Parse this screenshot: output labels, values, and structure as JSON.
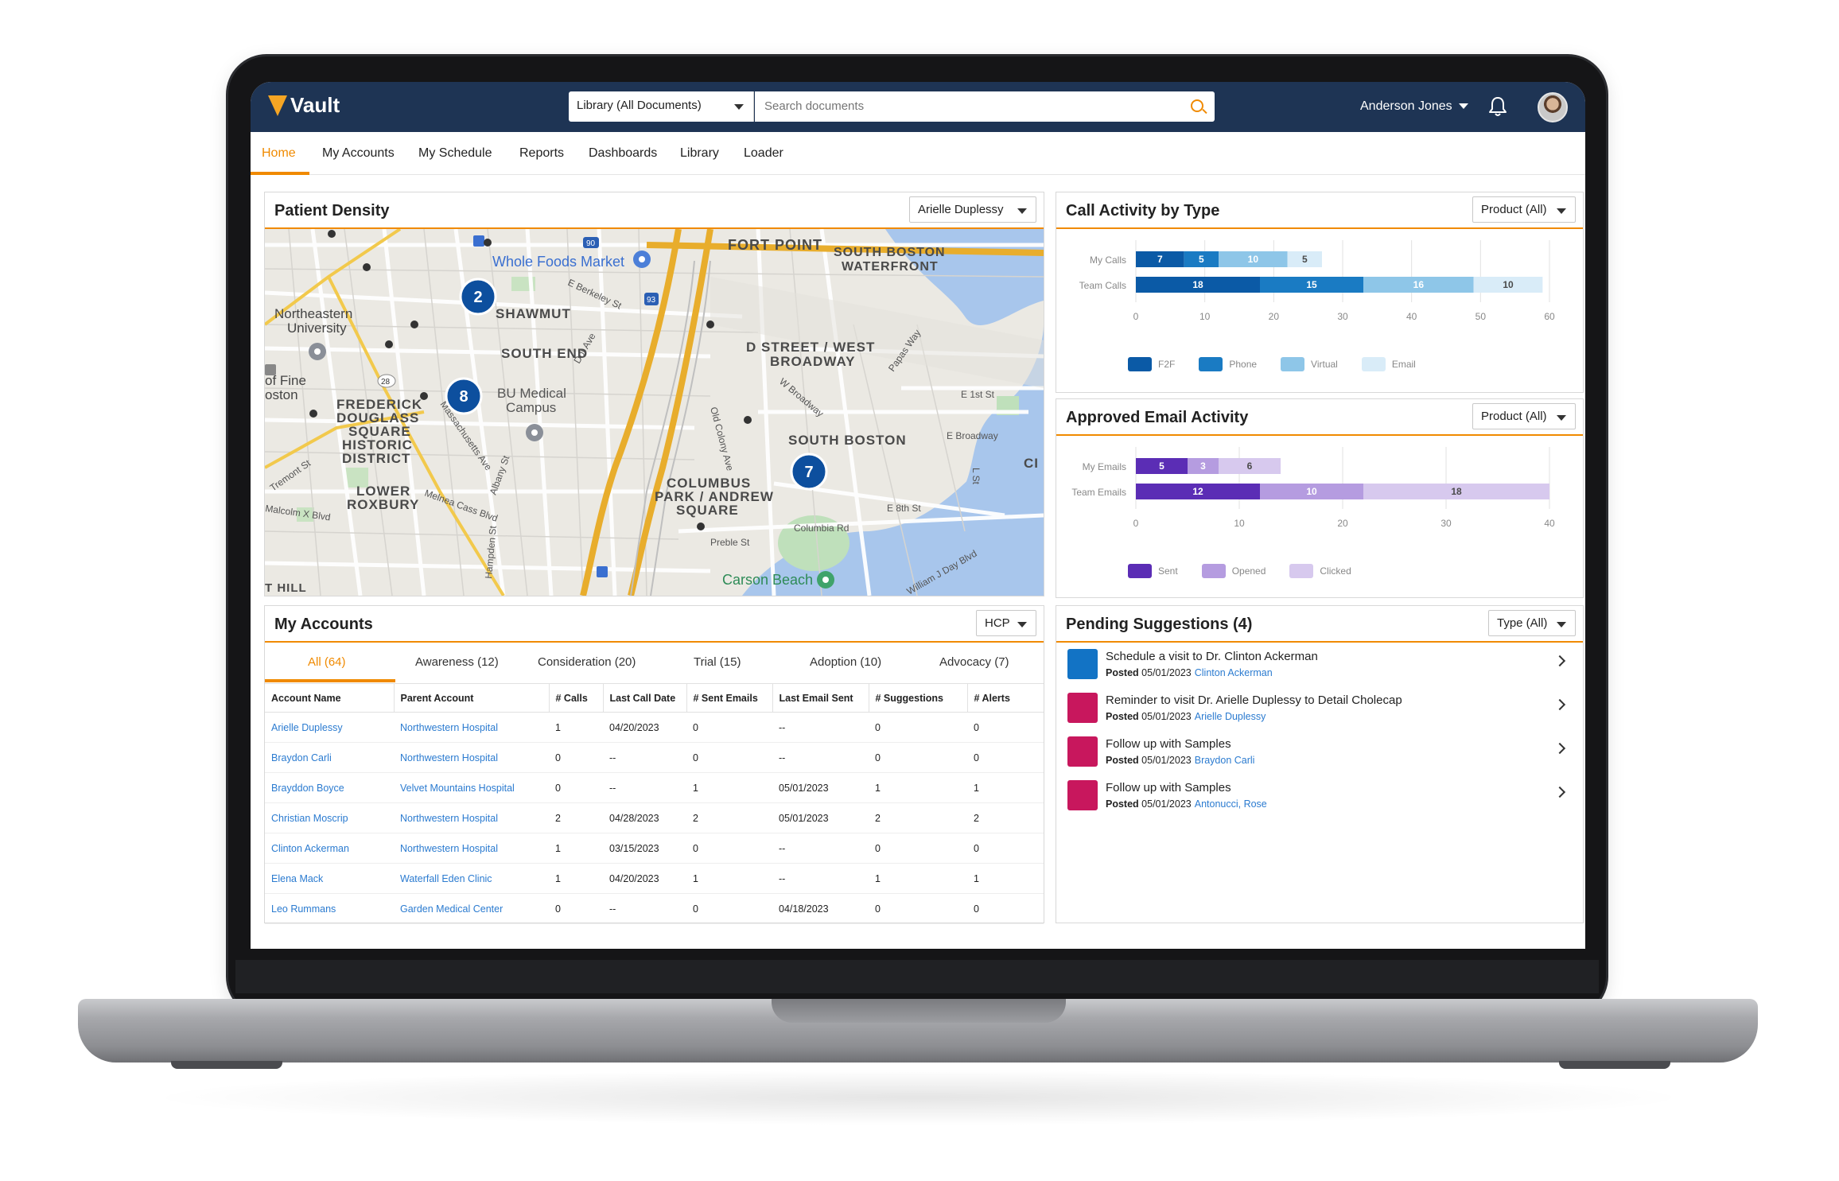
{
  "app": {
    "brand": "Vault"
  },
  "header": {
    "library_select": "Library (All Documents)",
    "search_placeholder": "Search documents",
    "user_name": "Anderson Jones"
  },
  "nav": {
    "items": [
      {
        "label": "Home",
        "active": true
      },
      {
        "label": "My Accounts"
      },
      {
        "label": "My Schedule"
      },
      {
        "label": "Reports"
      },
      {
        "label": "Dashboards"
      },
      {
        "label": "Library"
      },
      {
        "label": "Loader"
      }
    ]
  },
  "patient_density": {
    "title": "Patient Density",
    "filter": "Arielle Duplessy",
    "clusters": [
      2,
      8,
      7
    ],
    "map_labels": {
      "whole_foods": "Whole Foods Market",
      "fort_point": "FORT POINT",
      "south_boston_waterfront_1": "SOUTH BOSTON",
      "south_boston_waterfront_2": "WATERFRONT",
      "shawmut": "SHAWMUT",
      "northeastern_1": "Northeastern",
      "northeastern_2": "University",
      "south_end": "SOUTH END",
      "d_street_1": "D STREET / WEST",
      "d_street_2": "BROADWAY",
      "of_fine": "of Fine",
      "oston": "oston",
      "frederick_1": "FREDERICK",
      "frederick_2": "DOUGLASS",
      "frederick_3": "SQUARE",
      "frederick_4": "HISTORIC",
      "frederick_5": "DISTRICT",
      "bu_medical_1": "BU Medical",
      "bu_medical_2": "Campus",
      "south_boston": "SOUTH BOSTON",
      "columbus_1": "COLUMBUS",
      "columbus_2": "PARK / ANDREW",
      "columbus_3": "SQUARE",
      "lower_roxbury_1": "LOWER",
      "lower_roxbury_2": "ROXBURY",
      "e_1st": "E 1st St",
      "e_broadway": "E Broadway",
      "e_8th": "E 8th St",
      "columbia_rd": "Columbia Rd",
      "william_j_day": "William J Day Blvd",
      "carson_beach": "Carson Beach",
      "preble": "Preble St",
      "malcolm_x": "Malcolm X Blvd",
      "tremont": "Tremont St",
      "albany": "Albany St",
      "melnea": "Melnea Cass Blvd",
      "hampden": "Hampden St",
      "old_colony": "Old Colony Ave",
      "w_broadway": "W Broadway",
      "papas_way": "Papas Way",
      "e_berkeley": "E Berkeley St",
      "massachusetts": "Massachusetts Ave",
      "dot_ave": "Dot Ave",
      "t_hill": "T HILL",
      "ci": "CI",
      "route_90": "90",
      "route_93": "93",
      "route_28": "28",
      "l_st": "L St"
    }
  },
  "call_activity": {
    "title": "Call Activity by Type",
    "filter": "Product (All)",
    "chart_data": {
      "type": "bar",
      "orientation": "horizontal",
      "stacked": true,
      "categories": [
        "My Calls",
        "Team Calls"
      ],
      "series": [
        {
          "name": "F2F",
          "values": [
            7,
            18
          ],
          "color": "#0b5aa6"
        },
        {
          "name": "Phone",
          "values": [
            5,
            15
          ],
          "color": "#1a7bc3"
        },
        {
          "name": "Virtual",
          "values": [
            10,
            16
          ],
          "color": "#8ec6e8"
        },
        {
          "name": "Email",
          "values": [
            5,
            10
          ],
          "color": "#d9ecf8"
        }
      ],
      "xlim": [
        0,
        60
      ],
      "xticks": [
        0,
        10,
        20,
        30,
        40,
        50,
        60
      ],
      "grid": true,
      "legend": "bottom"
    }
  },
  "email_activity": {
    "title": "Approved Email Activity",
    "filter": "Product (All)",
    "chart_data": {
      "type": "bar",
      "orientation": "horizontal",
      "stacked": true,
      "categories": [
        "My Emails",
        "Team Emails"
      ],
      "series": [
        {
          "name": "Sent",
          "values": [
            5,
            12
          ],
          "color": "#5b2db5"
        },
        {
          "name": "Opened",
          "values": [
            3,
            10
          ],
          "color": "#b59ce0"
        },
        {
          "name": "Clicked",
          "values": [
            6,
            18
          ],
          "color": "#d7c9ee"
        }
      ],
      "xlim": [
        0,
        40
      ],
      "xticks": [
        0,
        10,
        20,
        30,
        40
      ],
      "grid": true,
      "legend": "bottom"
    }
  },
  "accounts": {
    "title": "My Accounts",
    "filter": "HCP",
    "tabs": [
      "All (64)",
      "Awareness (12)",
      "Consideration (20)",
      "Trial (15)",
      "Adoption (10)",
      "Advocacy (7)"
    ],
    "columns": [
      "Account Name",
      "Parent Account",
      "# Calls",
      "Last Call Date",
      "# Sent Emails",
      "Last Email Sent",
      "# Suggestions",
      "# Alerts"
    ],
    "rows": [
      [
        "Arielle Duplessy",
        "Northwestern Hospital",
        "1",
        "04/20/2023",
        "0",
        "--",
        "0",
        "0"
      ],
      [
        "Braydon Carli",
        "Northwestern Hospital",
        "0",
        "--",
        "0",
        "--",
        "0",
        "0"
      ],
      [
        "Brayddon Boyce",
        "Velvet Mountains Hospital",
        "0",
        "--",
        "1",
        "05/01/2023",
        "1",
        "1"
      ],
      [
        "Christian Moscrip",
        "Northwestern Hospital",
        "2",
        "04/28/2023",
        "2",
        "05/01/2023",
        "2",
        "2"
      ],
      [
        "Clinton Ackerman",
        "Northwestern Hospital",
        "1",
        "03/15/2023",
        "0",
        "--",
        "0",
        "0"
      ],
      [
        "Elena Mack",
        "Waterfall Eden Clinic",
        "1",
        "04/20/2023",
        "1",
        "--",
        "1",
        "1"
      ],
      [
        "Leo Rummans",
        "Garden Medical Center",
        "0",
        "--",
        "0",
        "04/18/2023",
        "0",
        "0"
      ]
    ]
  },
  "suggestions": {
    "title": "Pending Suggestions (4)",
    "filter": "Type (All)",
    "posted_label": "Posted",
    "items": [
      {
        "title": "Schedule a visit to Dr. Clinton Ackerman",
        "date": "05/01/2023",
        "who": "Clinton Ackerman",
        "color": "#1273c5"
      },
      {
        "title": "Reminder to visit Dr. Arielle Duplessy to Detail Cholecap",
        "date": "05/01/2023",
        "who": "Arielle Duplessy",
        "color": "#c8175d"
      },
      {
        "title": "Follow up with Samples",
        "date": "05/01/2023",
        "who": "Braydon Carli",
        "color": "#c8175d"
      },
      {
        "title": "Follow up with Samples",
        "date": "05/01/2023",
        "who": "Antonucci, Rose",
        "color": "#c8175d"
      }
    ]
  }
}
